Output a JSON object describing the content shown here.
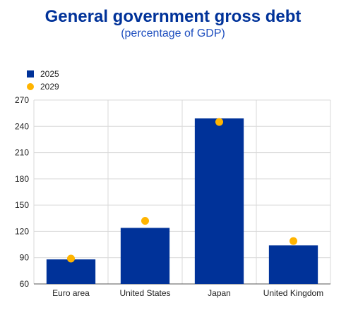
{
  "chart_data": {
    "type": "bar",
    "title": "General government gross debt",
    "subtitle": "(percentage of GDP)",
    "xlabel": "",
    "ylabel": "",
    "categories": [
      "Euro area",
      "United States",
      "Japan",
      "United Kingdom"
    ],
    "series": [
      {
        "name": "2025",
        "kind": "bar",
        "color": "#003299",
        "values": [
          88,
          124,
          249,
          104
        ]
      },
      {
        "name": "2029",
        "kind": "dot",
        "color": "#ffb400",
        "values": [
          89,
          132,
          245,
          109
        ]
      }
    ],
    "ylim": [
      60,
      270
    ],
    "yticks": [
      60,
      90,
      120,
      150,
      180,
      210,
      240,
      270
    ],
    "grid": true,
    "legend_position": "top-left"
  }
}
